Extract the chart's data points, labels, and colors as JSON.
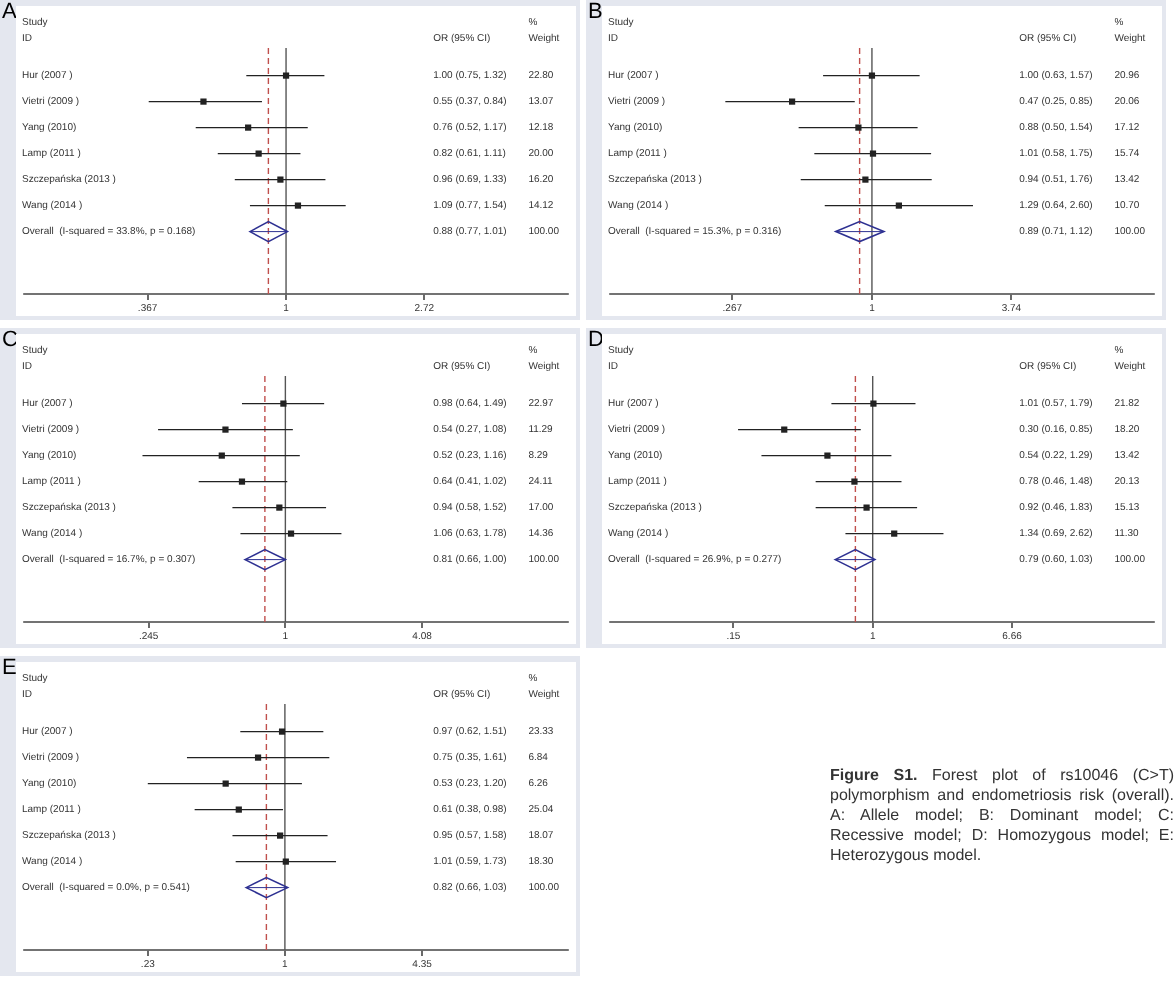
{
  "chart_data": [
    {
      "type": "scatter",
      "title": "A",
      "orientation": "horizontal",
      "log": "x",
      "xlim": [
        0.15,
        7.7
      ],
      "xticks": [
        {
          "value": 0.367,
          "label": ".367"
        },
        1,
        2.72
      ],
      "categories": [
        "Hur (2007 )",
        "Vietri (2009 )",
        "Yang (2010)",
        "Lamp (2011 )",
        "Szczepańska (2013 )",
        "Wang (2014 )",
        "Overall  (I-squared = 33.8%, p = 0.168)"
      ],
      "series": [
        {
          "type": "scatter",
          "marker": "square",
          "color": "#222222",
          "values": [
            1.0,
            0.55,
            0.76,
            0.82,
            0.96,
            1.09,
            null
          ],
          "errors": [
            [
              0.75,
              1.32
            ],
            [
              0.37,
              0.84
            ],
            [
              0.52,
              1.17
            ],
            [
              0.61,
              1.11
            ],
            [
              0.69,
              1.33
            ],
            [
              0.77,
              1.54
            ],
            null
          ]
        },
        {
          "type": "scatter",
          "marker": "diamond",
          "color": "#2e3192",
          "values": [
            null,
            null,
            null,
            null,
            null,
            null,
            0.88
          ],
          "errors": [
            null,
            null,
            null,
            null,
            null,
            null,
            [
              0.77,
              1.01
            ]
          ]
        }
      ],
      "ref_lines": [
        {
          "axis": "x",
          "value": 1,
          "color": "#555555"
        },
        {
          "axis": "x",
          "value": 0.88,
          "color": "#c0504d",
          "line_style": "dashed"
        }
      ],
      "annotations": [
        "Study",
        "ID",
        "OR (95% CI)",
        "%",
        "Weight",
        "1.00 (0.75, 1.32)",
        "0.55 (0.37, 0.84)",
        "0.76 (0.52, 1.17)",
        "0.82 (0.61, 1.11)",
        "0.96 (0.69, 1.33)",
        "1.09 (0.77, 1.54)",
        "0.88 (0.77, 1.01)",
        "22.80",
        "13.07",
        "12.18",
        "20.00",
        "16.20",
        "14.12",
        "100.00"
      ]
    },
    {
      "type": "scatter",
      "title": "B",
      "orientation": "horizontal",
      "log": "x",
      "xlim": [
        0.084,
        14.4
      ],
      "xticks": [
        {
          "value": 0.267,
          "label": ".267"
        },
        1,
        3.74
      ],
      "categories": [
        "Hur (2007 )",
        "Vietri (2009 )",
        "Yang (2010)",
        "Lamp (2011 )",
        "Szczepańska (2013 )",
        "Wang (2014 )",
        "Overall  (I-squared = 15.3%, p = 0.316)"
      ],
      "series": [
        {
          "type": "scatter",
          "marker": "square",
          "color": "#222222",
          "values": [
            1.0,
            0.47,
            0.88,
            1.01,
            0.94,
            1.29,
            null
          ],
          "errors": [
            [
              0.63,
              1.57
            ],
            [
              0.25,
              0.85
            ],
            [
              0.5,
              1.54
            ],
            [
              0.58,
              1.75
            ],
            [
              0.51,
              1.76
            ],
            [
              0.64,
              2.6
            ],
            null
          ]
        },
        {
          "type": "scatter",
          "marker": "diamond",
          "color": "#2e3192",
          "values": [
            null,
            null,
            null,
            null,
            null,
            null,
            0.89
          ],
          "errors": [
            null,
            null,
            null,
            null,
            null,
            null,
            [
              0.71,
              1.12
            ]
          ]
        }
      ],
      "ref_lines": [
        {
          "axis": "x",
          "value": 1,
          "color": "#555555"
        },
        {
          "axis": "x",
          "value": 0.89,
          "color": "#c0504d",
          "line_style": "dashed"
        }
      ],
      "annotations": [
        "Study",
        "ID",
        "OR (95% CI)",
        "%",
        "Weight",
        "1.00 (0.63, 1.57)",
        "0.47 (0.25, 0.85)",
        "0.88 (0.50, 1.54)",
        "1.01 (0.58, 1.75)",
        "0.94 (0.51, 1.76)",
        "1.29 (0.64, 2.60)",
        "0.89 (0.71, 1.12)",
        "20.96",
        "20.06",
        "17.12",
        "15.74",
        "13.42",
        "10.70",
        "100.00"
      ]
    },
    {
      "type": "scatter",
      "title": "C",
      "orientation": "horizontal",
      "log": "x",
      "xlim": [
        0.068,
        18.3
      ],
      "xticks": [
        {
          "value": 0.245,
          "label": ".245"
        },
        1,
        4.08
      ],
      "categories": [
        "Hur (2007 )",
        "Vietri (2009 )",
        "Yang (2010)",
        "Lamp (2011 )",
        "Szczepańska (2013 )",
        "Wang (2014 )",
        "Overall  (I-squared = 16.7%, p = 0.307)"
      ],
      "series": [
        {
          "type": "scatter",
          "marker": "square",
          "color": "#222222",
          "values": [
            0.98,
            0.54,
            0.52,
            0.64,
            0.94,
            1.06,
            null
          ],
          "errors": [
            [
              0.64,
              1.49
            ],
            [
              0.27,
              1.08
            ],
            [
              0.23,
              1.16
            ],
            [
              0.41,
              1.02
            ],
            [
              0.58,
              1.52
            ],
            [
              0.63,
              1.78
            ],
            null
          ]
        },
        {
          "type": "scatter",
          "marker": "diamond",
          "color": "#2e3192",
          "values": [
            null,
            null,
            null,
            null,
            null,
            null,
            0.81
          ],
          "errors": [
            null,
            null,
            null,
            null,
            null,
            null,
            [
              0.66,
              1.0
            ]
          ]
        }
      ],
      "ref_lines": [
        {
          "axis": "x",
          "value": 1,
          "color": "#555555"
        },
        {
          "axis": "x",
          "value": 0.81,
          "color": "#c0504d",
          "line_style": "dashed"
        }
      ],
      "annotations": [
        "Study",
        "ID",
        "OR (95% CI)",
        "%",
        "Weight",
        "0.98 (0.64, 1.49)",
        "0.54 (0.27, 1.08)",
        "0.52 (0.23, 1.16)",
        "0.64 (0.41, 1.02)",
        "0.94 (0.58, 1.52)",
        "1.06 (0.63, 1.78)",
        "0.81 (0.66, 1.00)",
        "22.97",
        "11.29",
        "8.29",
        "24.11",
        "17.00",
        "14.36",
        "100.00"
      ]
    },
    {
      "type": "scatter",
      "title": "D",
      "orientation": "horizontal",
      "log": "x",
      "xlim": [
        0.028,
        46
      ],
      "xticks": [
        {
          "value": 0.15,
          "label": ".15"
        },
        1,
        6.66
      ],
      "categories": [
        "Hur (2007 )",
        "Vietri (2009 )",
        "Yang (2010)",
        "Lamp (2011 )",
        "Szczepańska (2013 )",
        "Wang (2014 )",
        "Overall  (I-squared = 26.9%, p = 0.277)"
      ],
      "series": [
        {
          "type": "scatter",
          "marker": "square",
          "color": "#222222",
          "values": [
            1.01,
            0.3,
            0.54,
            0.78,
            0.92,
            1.34,
            null
          ],
          "errors": [
            [
              0.57,
              1.79
            ],
            [
              0.16,
              0.85
            ],
            [
              0.22,
              1.29
            ],
            [
              0.46,
              1.48
            ],
            [
              0.46,
              1.83
            ],
            [
              0.69,
              2.62
            ],
            null
          ]
        },
        {
          "type": "scatter",
          "marker": "diamond",
          "color": "#2e3192",
          "values": [
            null,
            null,
            null,
            null,
            null,
            null,
            0.79
          ],
          "errors": [
            null,
            null,
            null,
            null,
            null,
            null,
            [
              0.6,
              1.03
            ]
          ]
        }
      ],
      "ref_lines": [
        {
          "axis": "x",
          "value": 1,
          "color": "#555555"
        },
        {
          "axis": "x",
          "value": 0.79,
          "color": "#c0504d",
          "line_style": "dashed"
        }
      ],
      "annotations": [
        "Study",
        "ID",
        "OR (95% CI)",
        "%",
        "Weight",
        "1.01 (0.57, 1.79)",
        "0.30 (0.16, 0.85)",
        "0.54 (0.22, 1.29)",
        "0.78 (0.46, 1.48)",
        "0.92 (0.46, 1.83)",
        "1.34 (0.69, 2.62)",
        "0.79 (0.60, 1.03)",
        "21.82",
        "18.20",
        "13.42",
        "20.13",
        "15.13",
        "11.30",
        "100.00"
      ]
    },
    {
      "type": "scatter",
      "title": "E",
      "orientation": "horizontal",
      "log": "x",
      "xlim": [
        0.061,
        20.8
      ],
      "xticks": [
        {
          "value": 0.23,
          "label": ".23"
        },
        1,
        4.35
      ],
      "categories": [
        "Hur (2007 )",
        "Vietri (2009 )",
        "Yang (2010)",
        "Lamp (2011 )",
        "Szczepańska (2013 )",
        "Wang (2014 )",
        "Overall  (I-squared = 0.0%, p = 0.541)"
      ],
      "series": [
        {
          "type": "scatter",
          "marker": "square",
          "color": "#222222",
          "values": [
            0.97,
            0.75,
            0.53,
            0.61,
            0.95,
            1.01,
            null
          ],
          "errors": [
            [
              0.62,
              1.51
            ],
            [
              0.35,
              1.61
            ],
            [
              0.23,
              1.2
            ],
            [
              0.38,
              0.98
            ],
            [
              0.57,
              1.58
            ],
            [
              0.59,
              1.73
            ],
            null
          ]
        },
        {
          "type": "scatter",
          "marker": "diamond",
          "color": "#2e3192",
          "values": [
            null,
            null,
            null,
            null,
            null,
            null,
            0.82
          ],
          "errors": [
            null,
            null,
            null,
            null,
            null,
            null,
            [
              0.66,
              1.03
            ]
          ]
        }
      ],
      "ref_lines": [
        {
          "axis": "x",
          "value": 1,
          "color": "#555555"
        },
        {
          "axis": "x",
          "value": 0.82,
          "color": "#c0504d",
          "line_style": "dashed"
        }
      ],
      "annotations": [
        "Study",
        "ID",
        "OR (95% CI)",
        "%",
        "Weight",
        "0.97 (0.62, 1.51)",
        "0.75 (0.35, 1.61)",
        "0.53 (0.23, 1.20)",
        "0.61 (0.38, 0.98)",
        "0.95 (0.57, 1.58)",
        "1.01 (0.59, 1.73)",
        "0.82 (0.66, 1.03)",
        "23.33",
        "6.84",
        "6.26",
        "25.04",
        "18.07",
        "18.30",
        "100.00"
      ]
    },
    {
      "type": "other",
      "title": "Figure S1.",
      "annotations": [
        "Forest plot of rs10046 (C>T) polymorphism and endometriosis risk (overall). A: Allele model; B: Dominant model; C: Recessive model; D: Homozygous model; E: Heterozygous model."
      ]
    }
  ]
}
